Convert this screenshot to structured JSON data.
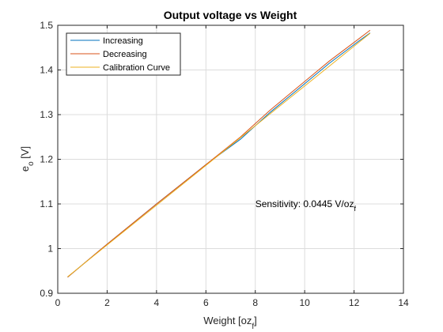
{
  "chart_data": {
    "type": "line",
    "title": "Output voltage vs Weight",
    "xlabel_main": "Weight [oz",
    "xlabel_sub": "f",
    "xlabel_end": "]",
    "ylabel_main": "e",
    "ylabel_sub": "o",
    "ylabel_end": " [V]",
    "xlim": [
      0,
      14
    ],
    "ylim": [
      0.9,
      1.5
    ],
    "xticks": [
      0,
      2,
      4,
      6,
      8,
      10,
      12,
      14
    ],
    "yticks": [
      0.9,
      1,
      1.1,
      1.2,
      1.3,
      1.4,
      1.5
    ],
    "xtick_labels": [
      "0",
      "2",
      "4",
      "6",
      "8",
      "10",
      "12",
      "14"
    ],
    "ytick_labels": [
      "0.9",
      "1",
      "1.1",
      "1.2",
      "1.3",
      "1.4",
      "1.5"
    ],
    "grid": true,
    "legend_position": "top-left",
    "annotation": {
      "text_main": "Sensitivity: 0.0445 V/oz",
      "text_sub": "f",
      "x": 8.0,
      "y": 1.1
    },
    "series": [
      {
        "name": "Increasing",
        "color": "#0072bd",
        "x": [
          0.4,
          2.0,
          4.0,
          6.0,
          7.4,
          8.6,
          9.8,
          11.0,
          12.2,
          12.65
        ],
        "y": [
          0.936,
          1.01,
          1.1,
          1.188,
          1.245,
          1.305,
          1.36,
          1.415,
          1.465,
          1.483
        ]
      },
      {
        "name": "Decreasing",
        "color": "#d95319",
        "x": [
          0.4,
          2.0,
          4.0,
          6.0,
          7.4,
          8.6,
          9.8,
          11.0,
          12.2,
          12.65
        ],
        "y": [
          0.936,
          1.01,
          1.1,
          1.188,
          1.25,
          1.31,
          1.365,
          1.42,
          1.47,
          1.489
        ]
      },
      {
        "name": "Calibration Curve",
        "color": "#edb120",
        "x": [
          0.4,
          12.65
        ],
        "y": [
          0.937,
          1.482
        ]
      }
    ]
  }
}
